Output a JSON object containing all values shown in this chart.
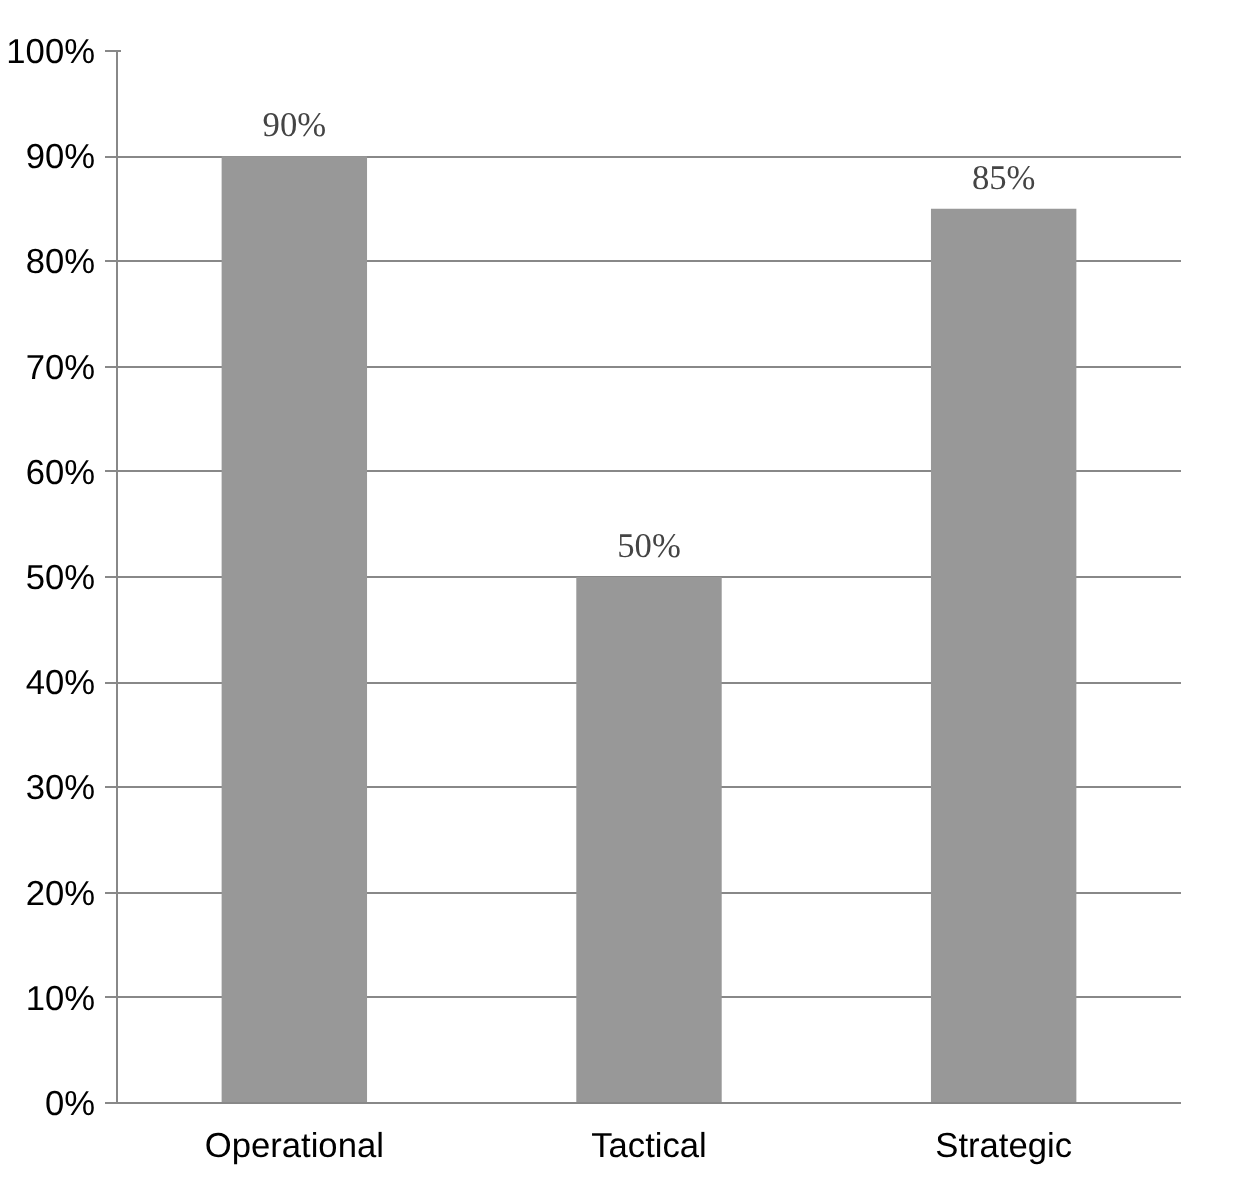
{
  "chart_data": {
    "type": "bar",
    "categories": [
      "Operational",
      "Tactical",
      "Strategic"
    ],
    "values": [
      90,
      50,
      85
    ],
    "color": "#989898",
    "value_labels": [
      "90%",
      "50%",
      "85%"
    ],
    "ylim": [
      0,
      100
    ],
    "yticks": [
      {
        "value": 0,
        "label": "0%"
      },
      {
        "value": 10,
        "label": "10%"
      },
      {
        "value": 20,
        "label": "20%"
      },
      {
        "value": 30,
        "label": "30%"
      },
      {
        "value": 40,
        "label": "40%"
      },
      {
        "value": 50,
        "label": "50%"
      },
      {
        "value": 60,
        "label": "60%"
      },
      {
        "value": 70,
        "label": "70%"
      },
      {
        "value": 80,
        "label": "80%"
      },
      {
        "value": 90,
        "label": "90%"
      },
      {
        "value": 100,
        "label": "100%"
      }
    ],
    "grid": "y"
  }
}
